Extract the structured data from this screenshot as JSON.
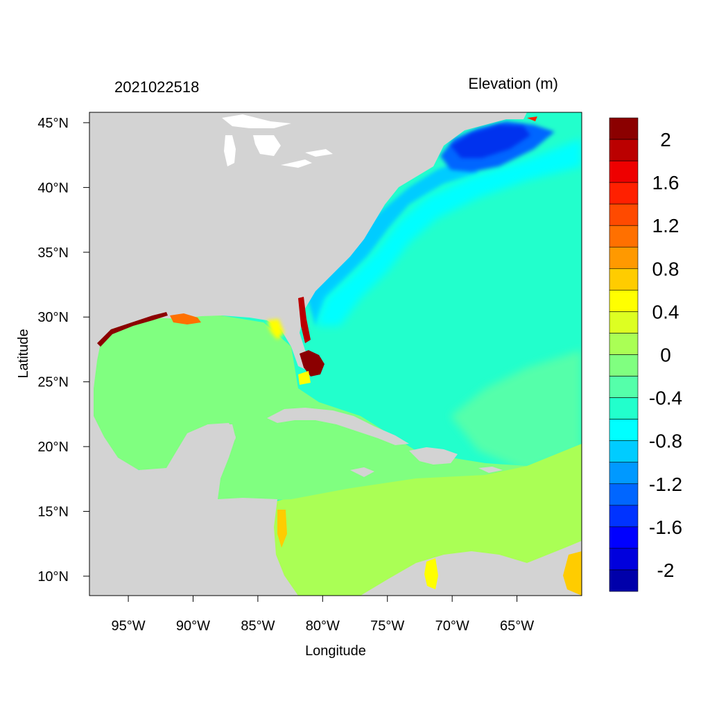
{
  "figure": {
    "title_left": "2021022518",
    "title_right": "Elevation (m)",
    "xlabel": "Longitude",
    "ylabel": "Latitude"
  },
  "map": {
    "lon_ticks": [
      "95°W",
      "90°W",
      "85°W",
      "80°W",
      "75°W",
      "70°W",
      "65°W"
    ],
    "lon_tick_values": [
      -95,
      -90,
      -85,
      -80,
      -75,
      -70,
      -65
    ],
    "lat_ticks": [
      "45°N",
      "40°N",
      "35°N",
      "30°N",
      "25°N",
      "20°N",
      "15°N",
      "10°N"
    ],
    "lat_tick_values": [
      45,
      40,
      35,
      30,
      25,
      20,
      15,
      10
    ],
    "lon_range": [
      -98,
      -60
    ],
    "lat_range": [
      8.5,
      45.8
    ],
    "land_color": "#d3d3d3",
    "ocean_fill_colors": {
      "gulf_of_mexico": "#80ff80",
      "caribbean_south": "#aaff55",
      "atlantic_open": "#22ffcc",
      "gulf_of_maine": "#0033ee",
      "florida_coast_surge": "#8b0000"
    }
  },
  "colorbar": {
    "tick_labels": [
      "2",
      "1.6",
      "1.2",
      "0.8",
      "0.4",
      "0",
      "-0.4",
      "-0.8",
      "-1.2",
      "-1.6",
      "-2"
    ],
    "levels": [
      -2.2,
      -2,
      -1.8,
      -1.6,
      -1.4,
      -1.2,
      -1,
      -0.8,
      -0.6,
      -0.4,
      -0.2,
      0,
      0.2,
      0.4,
      0.6,
      0.8,
      1,
      1.2,
      1.4,
      1.6,
      1.8,
      2,
      2.2
    ],
    "colors_top_to_bottom": [
      "#8b0000",
      "#bb0000",
      "#ee0000",
      "#ff2000",
      "#ff4a00",
      "#ff7000",
      "#ff9900",
      "#ffcc00",
      "#ffff00",
      "#ddff22",
      "#aaff55",
      "#80ff80",
      "#55ffaa",
      "#22ffcc",
      "#00ffff",
      "#00ccff",
      "#0099ff",
      "#0066ff",
      "#0033ff",
      "#0000ff",
      "#0000dd",
      "#0000aa"
    ]
  }
}
